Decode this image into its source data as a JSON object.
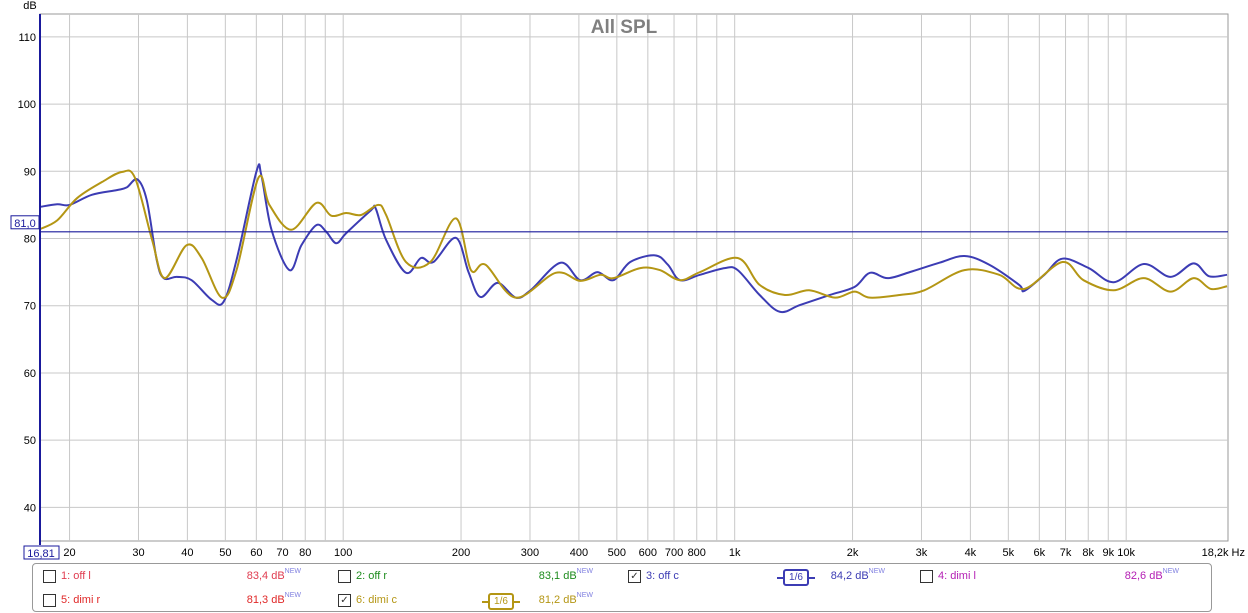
{
  "chart_data": {
    "type": "line",
    "title": "All SPL",
    "ylabel": "dB",
    "xlabel": "Hz",
    "xscale": "log",
    "xlim": [
      16.81,
      18200
    ],
    "ylim": [
      35,
      113.4
    ],
    "grid": true,
    "x_start_label": "16,81",
    "x_ticks": [
      {
        "f": 20,
        "label": "20"
      },
      {
        "f": 30,
        "label": "30"
      },
      {
        "f": 40,
        "label": "40"
      },
      {
        "f": 50,
        "label": "50"
      },
      {
        "f": 60,
        "label": "60"
      },
      {
        "f": 70,
        "label": "70"
      },
      {
        "f": 80,
        "label": "80"
      },
      {
        "f": 90,
        "label": ""
      },
      {
        "f": 100,
        "label": "100"
      },
      {
        "f": 200,
        "label": "200"
      },
      {
        "f": 300,
        "label": "300"
      },
      {
        "f": 400,
        "label": "400"
      },
      {
        "f": 500,
        "label": "500"
      },
      {
        "f": 600,
        "label": "600"
      },
      {
        "f": 700,
        "label": "700"
      },
      {
        "f": 800,
        "label": "800"
      },
      {
        "f": 900,
        "label": ""
      },
      {
        "f": 1000,
        "label": "1k"
      },
      {
        "f": 2000,
        "label": "2k"
      },
      {
        "f": 3000,
        "label": "3k"
      },
      {
        "f": 4000,
        "label": "4k"
      },
      {
        "f": 5000,
        "label": "5k"
      },
      {
        "f": 6000,
        "label": "6k"
      },
      {
        "f": 7000,
        "label": "7k"
      },
      {
        "f": 8000,
        "label": "8k"
      },
      {
        "f": 9000,
        "label": "9k"
      },
      {
        "f": 10000,
        "label": "10k"
      }
    ],
    "x_end_label": "18,2k Hz",
    "y_ticks": [
      40,
      50,
      60,
      70,
      80,
      90,
      100,
      110
    ],
    "cursor": {
      "value": 81.0,
      "label": "81,0"
    },
    "series": [
      {
        "name": "3: off c",
        "color": "#3c3cb4",
        "points": [
          [
            16.8,
            84.7
          ],
          [
            18.6,
            85.1
          ],
          [
            20,
            85.0
          ],
          [
            22.8,
            86.5
          ],
          [
            26.4,
            87.2
          ],
          [
            28,
            87.6
          ],
          [
            29.8,
            88.8
          ],
          [
            31.5,
            85.7
          ],
          [
            33.4,
            76.8
          ],
          [
            34.8,
            74.1
          ],
          [
            37.6,
            74.3
          ],
          [
            41,
            73.8
          ],
          [
            46.1,
            70.9
          ],
          [
            49.5,
            70.6
          ],
          [
            53.4,
            76.8
          ],
          [
            60,
            89.9
          ],
          [
            61.8,
            89.4
          ],
          [
            65.6,
            81.3
          ],
          [
            72.9,
            75.3
          ],
          [
            78.2,
            79.0
          ],
          [
            85.4,
            82.0
          ],
          [
            90.5,
            81.0
          ],
          [
            96,
            79.3
          ],
          [
            101.8,
            80.8
          ],
          [
            117.8,
            84.2
          ],
          [
            121,
            84.5
          ],
          [
            128.7,
            79.8
          ],
          [
            144.7,
            74.9
          ],
          [
            158,
            77.1
          ],
          [
            170,
            76.5
          ],
          [
            194,
            80.1
          ],
          [
            209,
            75.0
          ],
          [
            224,
            71.3
          ],
          [
            248,
            73.4
          ],
          [
            276,
            71.2
          ],
          [
            301,
            72.3
          ],
          [
            359,
            76.4
          ],
          [
            403,
            73.8
          ],
          [
            446,
            75.0
          ],
          [
            490,
            73.8
          ],
          [
            541,
            76.5
          ],
          [
            626,
            77.5
          ],
          [
            675,
            76.1
          ],
          [
            725,
            73.8
          ],
          [
            815,
            74.6
          ],
          [
            943,
            75.6
          ],
          [
            1018,
            75.3
          ],
          [
            1158,
            71.6
          ],
          [
            1304,
            69.1
          ],
          [
            1467,
            70.1
          ],
          [
            1751,
            71.6
          ],
          [
            2025,
            72.8
          ],
          [
            2215,
            74.9
          ],
          [
            2460,
            74.1
          ],
          [
            2800,
            75.0
          ],
          [
            3335,
            76.4
          ],
          [
            3862,
            77.4
          ],
          [
            4470,
            76.1
          ],
          [
            5330,
            73.1
          ],
          [
            5490,
            72.2
          ],
          [
            6180,
            74.6
          ],
          [
            6870,
            77.0
          ],
          [
            8020,
            75.6
          ],
          [
            9300,
            73.5
          ],
          [
            11090,
            76.2
          ],
          [
            12980,
            74.3
          ],
          [
            14870,
            76.3
          ],
          [
            16260,
            74.4
          ],
          [
            18100,
            74.6
          ]
        ]
      },
      {
        "name": "6: dimi c",
        "color": "#b49614",
        "points": [
          [
            16.8,
            81.4
          ],
          [
            18.6,
            82.7
          ],
          [
            20.9,
            86.0
          ],
          [
            24.2,
            88.4
          ],
          [
            27.2,
            89.9
          ],
          [
            29.4,
            89.0
          ],
          [
            32.5,
            79.8
          ],
          [
            35,
            74.1
          ],
          [
            39.8,
            79.0
          ],
          [
            43.5,
            77.1
          ],
          [
            49,
            71.2
          ],
          [
            53.4,
            75.3
          ],
          [
            60.7,
            89.0
          ],
          [
            64.8,
            85.0
          ],
          [
            73.7,
            81.3
          ],
          [
            85.4,
            85.3
          ],
          [
            93.2,
            83.4
          ],
          [
            101.8,
            83.8
          ],
          [
            111.1,
            83.5
          ],
          [
            122.8,
            85.0
          ],
          [
            128.7,
            83.5
          ],
          [
            144.7,
            76.5
          ],
          [
            167,
            76.5
          ],
          [
            194,
            83.0
          ],
          [
            212,
            75.3
          ],
          [
            231,
            76.1
          ],
          [
            276,
            71.2
          ],
          [
            349,
            74.9
          ],
          [
            403,
            73.7
          ],
          [
            454,
            74.6
          ],
          [
            490,
            74.1
          ],
          [
            574,
            75.6
          ],
          [
            644,
            75.3
          ],
          [
            725,
            73.8
          ],
          [
            815,
            75.0
          ],
          [
            1018,
            77.1
          ],
          [
            1158,
            73.1
          ],
          [
            1344,
            71.6
          ],
          [
            1550,
            72.3
          ],
          [
            1804,
            71.2
          ],
          [
            2025,
            72.1
          ],
          [
            2215,
            71.2
          ],
          [
            2640,
            71.6
          ],
          [
            3050,
            72.3
          ],
          [
            3862,
            75.3
          ],
          [
            4740,
            74.6
          ],
          [
            5490,
            72.5
          ],
          [
            6870,
            76.5
          ],
          [
            7780,
            73.8
          ],
          [
            9300,
            72.3
          ],
          [
            11090,
            74.1
          ],
          [
            12980,
            72.1
          ],
          [
            14870,
            74.1
          ],
          [
            16450,
            72.5
          ],
          [
            18100,
            72.9
          ]
        ]
      }
    ]
  },
  "legend": {
    "smoothing_label": "1/6",
    "new_badge": "NEW",
    "items": [
      {
        "label": "1: off l",
        "value": "83,4 dB",
        "checked": false,
        "color": "#e03c50"
      },
      {
        "label": "2: off r",
        "value": "83,1 dB",
        "checked": false,
        "color": "#1e8c1e"
      },
      {
        "label": "3: off c",
        "value": "84,2 dB",
        "checked": true,
        "color": "#3c3cb4"
      },
      {
        "label": "4: dimi l",
        "value": "82,6 dB",
        "checked": false,
        "color": "#b41eb4"
      },
      {
        "label": "5: dimi r",
        "value": "81,3 dB",
        "checked": false,
        "color": "#e02828"
      },
      {
        "label": "6: dimi c",
        "value": "81,2 dB",
        "checked": true,
        "color": "#b49614"
      }
    ]
  }
}
